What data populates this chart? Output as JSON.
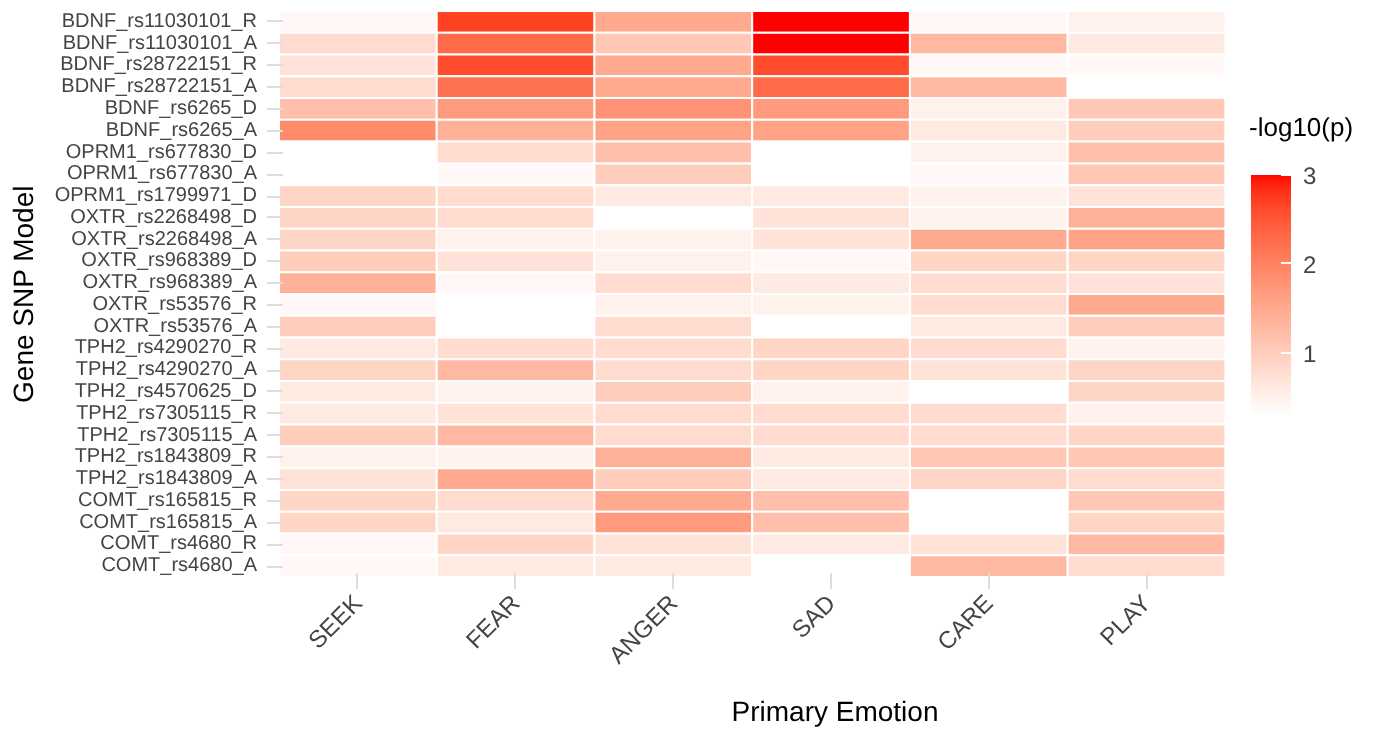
{
  "chart_data": {
    "type": "heatmap",
    "xlabel": "Primary Emotion",
    "ylabel": "Gene SNP Model",
    "clabel": "-log10(p)",
    "categories": [
      "SEEK",
      "FEAR",
      "ANGER",
      "SAD",
      "CARE",
      "PLAY"
    ],
    "y_categories": [
      "BDNF_rs11030101_R",
      "BDNF_rs11030101_A",
      "BDNF_rs28722151_R",
      "BDNF_rs28722151_A",
      "BDNF_rs6265_D",
      "BDNF_rs6265_A",
      "OPRM1_rs677830_D",
      "OPRM1_rs677830_A",
      "OPRM1_rs1799971_D",
      "OXTR_rs2268498_D",
      "OXTR_rs2268498_A",
      "OXTR_rs968389_D",
      "OXTR_rs968389_A",
      "OXTR_rs53576_R",
      "OXTR_rs53576_A",
      "TPH2_rs4290270_R",
      "TPH2_rs4290270_A",
      "TPH2_rs4570625_D",
      "TPH2_rs7305115_R",
      "TPH2_rs7305115_A",
      "TPH2_rs1843809_R",
      "TPH2_rs1843809_A",
      "COMT_rs165815_R",
      "COMT_rs165815_A",
      "COMT_rs4680_R",
      "COMT_rs4680_A"
    ],
    "cells": [
      [
        0.4,
        2.7,
        1.5,
        3.0,
        0.4,
        0.5
      ],
      [
        0.8,
        2.3,
        1.1,
        3.0,
        1.3,
        0.6
      ],
      [
        0.7,
        2.6,
        1.5,
        2.6,
        0.4,
        0.4
      ],
      [
        0.8,
        2.2,
        1.5,
        2.3,
        1.3,
        0.3
      ],
      [
        1.2,
        1.7,
        1.8,
        1.7,
        0.5,
        1.1
      ],
      [
        1.9,
        1.4,
        1.6,
        1.6,
        0.6,
        1.0
      ],
      [
        0.3,
        0.8,
        1.2,
        0.3,
        0.5,
        1.2
      ],
      [
        0.3,
        0.4,
        1.0,
        0.3,
        0.4,
        1.1
      ],
      [
        0.9,
        0.8,
        0.6,
        0.6,
        0.5,
        0.7
      ],
      [
        0.9,
        0.8,
        0.3,
        0.7,
        0.5,
        1.4
      ],
      [
        0.9,
        0.5,
        0.5,
        0.7,
        1.5,
        1.6
      ],
      [
        1.0,
        0.7,
        0.5,
        0.4,
        0.9,
        0.9
      ],
      [
        1.4,
        0.4,
        0.8,
        0.6,
        0.8,
        0.7
      ],
      [
        0.4,
        0.3,
        0.5,
        0.5,
        0.8,
        1.5
      ],
      [
        1.0,
        0.3,
        0.8,
        0.3,
        0.6,
        1.0
      ],
      [
        0.6,
        0.8,
        0.8,
        0.9,
        0.8,
        0.5
      ],
      [
        0.9,
        1.3,
        0.8,
        0.9,
        0.7,
        0.9
      ],
      [
        0.6,
        0.5,
        1.0,
        0.5,
        0.3,
        0.9
      ],
      [
        0.6,
        0.7,
        0.8,
        0.8,
        0.8,
        0.5
      ],
      [
        1.0,
        1.3,
        0.8,
        0.8,
        0.8,
        0.9
      ],
      [
        0.5,
        0.5,
        1.4,
        0.6,
        1.1,
        1.1
      ],
      [
        0.7,
        1.5,
        1.0,
        0.6,
        0.9,
        0.8
      ],
      [
        0.9,
        0.8,
        1.5,
        1.2,
        0.3,
        1.1
      ],
      [
        0.9,
        0.6,
        1.7,
        1.2,
        0.3,
        0.9
      ],
      [
        0.4,
        0.9,
        0.7,
        0.6,
        0.7,
        1.3
      ],
      [
        0.4,
        0.6,
        0.6,
        0.3,
        1.3,
        0.8
      ]
    ],
    "clim": [
      0.3,
      3
    ],
    "cticks": [
      1,
      2,
      3
    ]
  }
}
